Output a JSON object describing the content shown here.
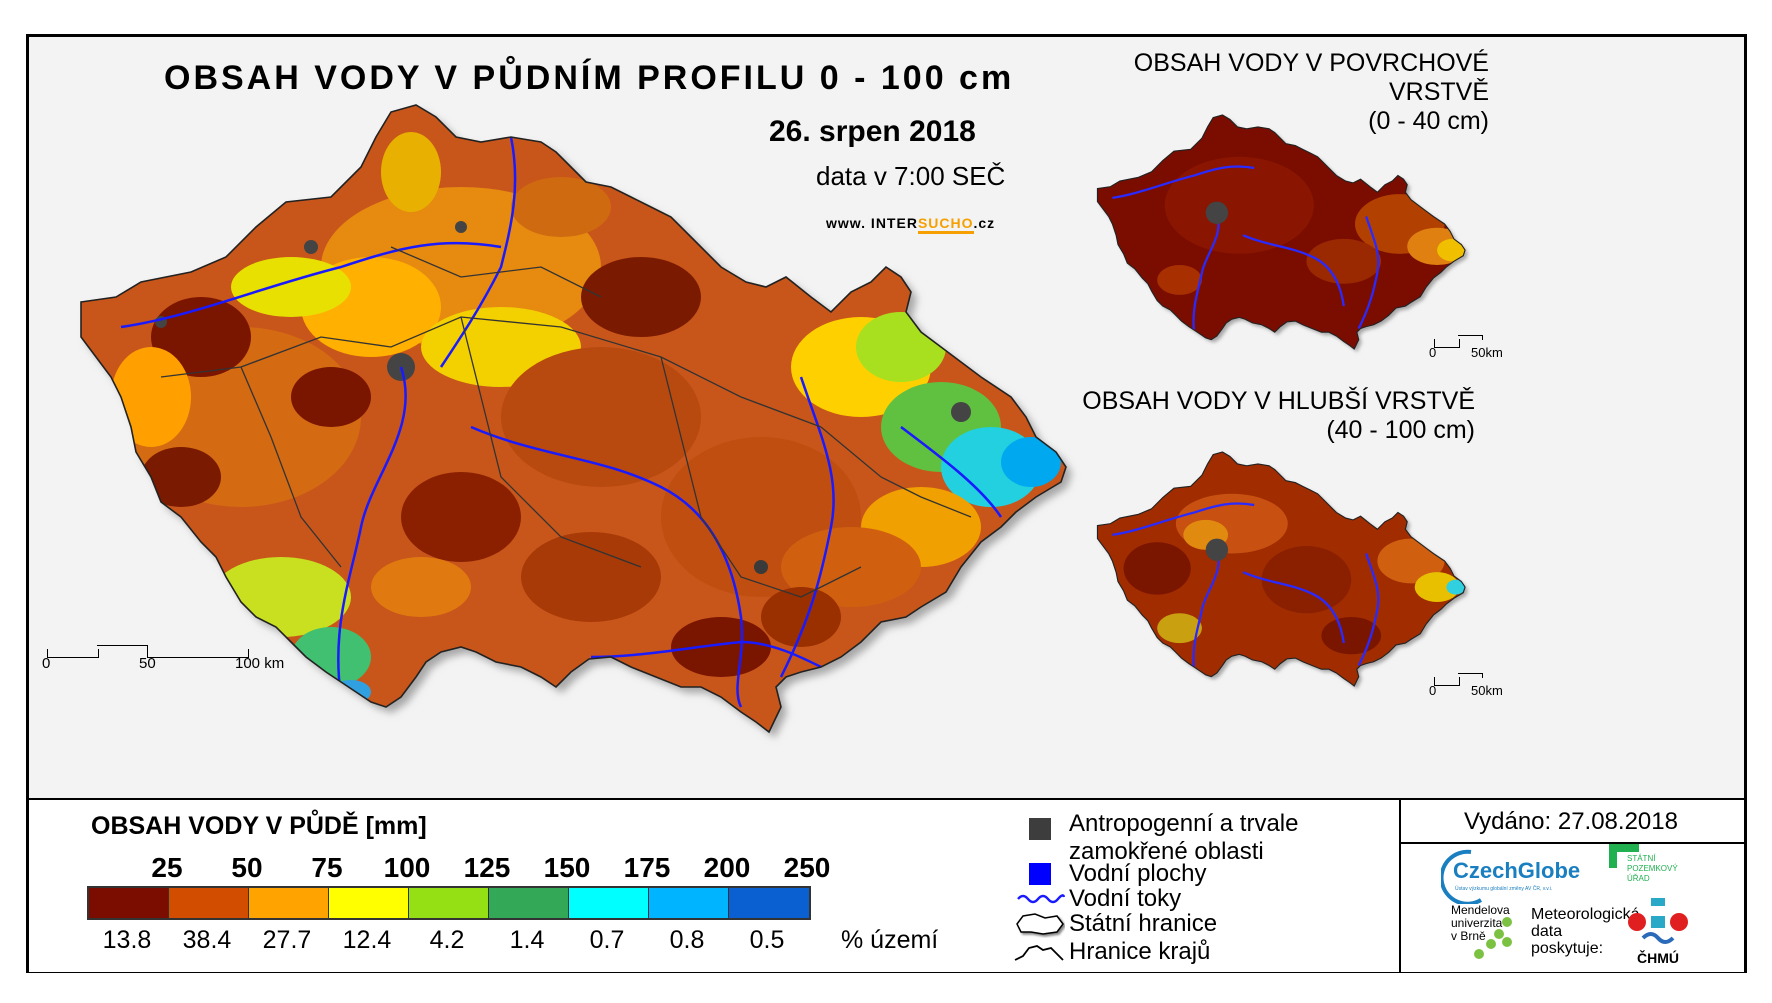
{
  "main_map": {
    "title": "OBSAH VODY V PŮDNÍM PROFILU 0 - 100 cm",
    "date": "26. srpen 2018",
    "data_time": "data v 7:00 SEČ",
    "website_prefix": "www. INTER",
    "website_highlight": "SUCHO",
    "website_suffix": ".cz",
    "scale": {
      "labels": [
        "0",
        "50",
        "100 km"
      ]
    }
  },
  "inset_surface": {
    "title": "OBSAH VODY V POVRCHOVÉ VRSTVĚ",
    "depth": "(0 - 40 cm)",
    "scale": {
      "labels": [
        "0",
        "50km"
      ]
    }
  },
  "inset_deep": {
    "title": "OBSAH VODY V HLUBŠÍ VRSTVĚ",
    "depth": "(40 - 100 cm)",
    "scale": {
      "labels": [
        "0",
        "50km"
      ]
    }
  },
  "legend": {
    "title": "OBSAH VODY V PŮDĚ [mm]",
    "breaks": [
      "25",
      "50",
      "75",
      "100",
      "125",
      "150",
      "175",
      "200",
      "250"
    ],
    "classes": [
      {
        "color": "#7a0d00",
        "percent": "13.8"
      },
      {
        "color": "#d24d00",
        "percent": "38.4"
      },
      {
        "color": "#ffa300",
        "percent": "27.7"
      },
      {
        "color": "#ffff00",
        "percent": "12.4"
      },
      {
        "color": "#94e014",
        "percent": "4.2"
      },
      {
        "color": "#33a857",
        "percent": "1.4"
      },
      {
        "color": "#00ffff",
        "percent": "0.7"
      },
      {
        "color": "#00b4ff",
        "percent": "0.8"
      },
      {
        "color": "#0a5fd1",
        "percent": "0.5"
      }
    ],
    "percent_label": "% území"
  },
  "symbols": {
    "anthropogenic_line1": "Antropogenní a trvale",
    "anthropogenic_line2": "zamokřené oblasti",
    "water_bodies": "Vodní plochy",
    "streams": "Vodní toky",
    "state_border": "Státní hranice",
    "region_border": "Hranice krajů",
    "colors": {
      "anthropogenic": "#3d3d3d",
      "water": "#0000ff",
      "stream": "#1a1aff"
    }
  },
  "issued": "Vydáno: 27.08.2018",
  "logos": {
    "czechglobe": "CzechGlobe",
    "czechglobe_sub": "Ústav výzkumu globální změny AV ČR, v.v.i.",
    "mendel_1": "Mendelova",
    "mendel_2": "univerzita",
    "mendel_3": "v Brně",
    "spu_1": "STÁTNÍ",
    "spu_2": "POZEMKOVÝ",
    "spu_3": "ÚŘAD",
    "meteo_1": "Meteorologická",
    "meteo_2": "data",
    "meteo_3": "poskytuje:",
    "chmu": "ČHMÚ"
  }
}
